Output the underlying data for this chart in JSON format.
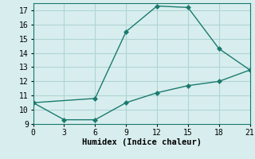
{
  "line1_x": [
    0,
    6,
    9,
    12,
    15,
    18,
    21
  ],
  "line1_y": [
    10.5,
    10.8,
    15.5,
    17.3,
    17.2,
    14.3,
    12.8
  ],
  "line2_x": [
    0,
    3,
    6,
    9,
    12,
    15,
    18,
    21
  ],
  "line2_y": [
    10.5,
    9.3,
    9.3,
    10.5,
    11.2,
    11.7,
    12.0,
    12.8
  ],
  "line_color": "#1a7a6e",
  "marker": "D",
  "marker_size": 3,
  "xlabel": "Humidex (Indice chaleur)",
  "xlim": [
    0,
    21
  ],
  "ylim": [
    9,
    17.5
  ],
  "xticks": [
    0,
    3,
    6,
    9,
    12,
    15,
    18,
    21
  ],
  "yticks": [
    9,
    10,
    11,
    12,
    13,
    14,
    15,
    16,
    17
  ],
  "background_color": "#d8eeee",
  "grid_color": "#b0d4d4",
  "font_family": "monospace",
  "tick_fontsize": 7,
  "xlabel_fontsize": 7.5,
  "linewidth": 1.0
}
